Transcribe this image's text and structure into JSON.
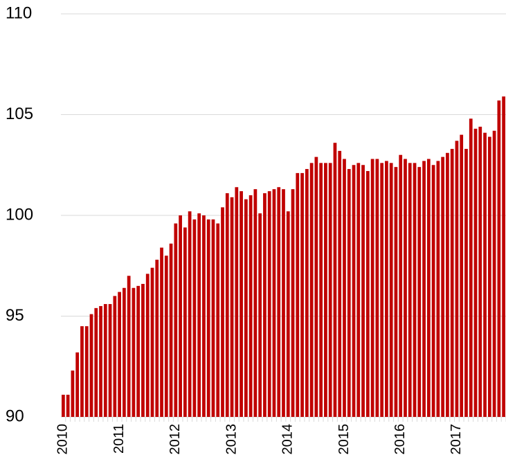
{
  "chart_data": {
    "type": "bar",
    "categories": [
      "2010",
      null,
      null,
      null,
      null,
      null,
      null,
      null,
      null,
      null,
      null,
      null,
      "2011",
      null,
      null,
      null,
      null,
      null,
      null,
      null,
      null,
      null,
      null,
      null,
      "2012",
      null,
      null,
      null,
      null,
      null,
      null,
      null,
      null,
      null,
      null,
      null,
      "2013",
      null,
      null,
      null,
      null,
      null,
      null,
      null,
      null,
      null,
      null,
      null,
      "2014",
      null,
      null,
      null,
      null,
      null,
      null,
      null,
      null,
      null,
      null,
      null,
      "2015",
      null,
      null,
      null,
      null,
      null,
      null,
      null,
      null,
      null,
      null,
      null,
      "2016",
      null,
      null,
      null,
      null,
      null,
      null,
      null,
      null,
      null,
      null,
      null,
      "2017",
      null,
      null,
      null,
      null,
      null,
      null,
      null,
      null,
      null,
      null
    ],
    "values": [
      91.1,
      91.1,
      92.3,
      93.2,
      94.5,
      94.5,
      95.1,
      95.4,
      95.5,
      95.6,
      95.6,
      96.0,
      96.2,
      96.4,
      97.0,
      96.4,
      96.5,
      96.6,
      97.1,
      97.4,
      97.8,
      98.4,
      98.0,
      98.6,
      99.6,
      100.0,
      99.4,
      100.2,
      99.8,
      100.1,
      100.0,
      99.8,
      99.8,
      99.6,
      100.4,
      101.1,
      100.9,
      101.4,
      101.2,
      100.8,
      101.0,
      101.3,
      100.1,
      101.1,
      101.2,
      101.3,
      101.4,
      101.3,
      100.2,
      101.3,
      102.1,
      102.1,
      102.3,
      102.6,
      102.9,
      102.6,
      102.6,
      102.6,
      103.6,
      103.2,
      102.8,
      102.3,
      102.5,
      102.6,
      102.5,
      102.2,
      102.8,
      102.8,
      102.6,
      102.7,
      102.6,
      102.4,
      103.0,
      102.8,
      102.6,
      102.6,
      102.4,
      102.7,
      102.8,
      102.5,
      102.7,
      102.9,
      103.1,
      103.3,
      103.7,
      104.0,
      103.3,
      104.8,
      104.3,
      104.4,
      104.1,
      103.9,
      104.2,
      105.7,
      105.9
    ],
    "color": "#c00000",
    "ylim": [
      90,
      110
    ],
    "yticks": [
      90,
      95,
      100,
      105,
      110
    ],
    "grid": true
  }
}
